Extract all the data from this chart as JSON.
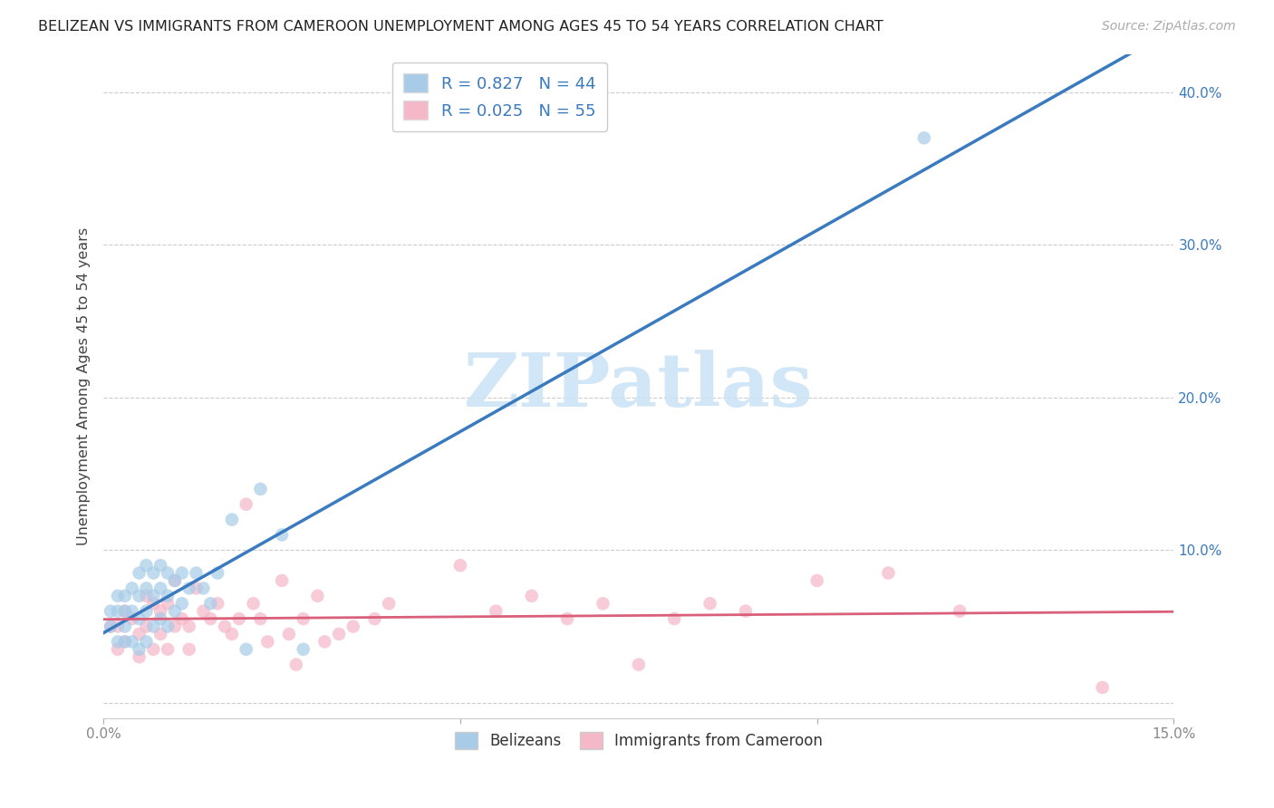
{
  "title": "BELIZEAN VS IMMIGRANTS FROM CAMEROON UNEMPLOYMENT AMONG AGES 45 TO 54 YEARS CORRELATION CHART",
  "source": "Source: ZipAtlas.com",
  "ylabel": "Unemployment Among Ages 45 to 54 years",
  "xlim": [
    0.0,
    0.15
  ],
  "ylim": [
    -0.01,
    0.425
  ],
  "xticks": [
    0.0,
    0.05,
    0.1,
    0.15
  ],
  "xticklabels": [
    "0.0%",
    "",
    "",
    "15.0%"
  ],
  "yticks": [
    0.0,
    0.1,
    0.2,
    0.3,
    0.4
  ],
  "yticklabels": [
    "",
    "10.0%",
    "20.0%",
    "30.0%",
    "40.0%"
  ],
  "belizean_color": "#a8cce8",
  "cameroon_color": "#f4b8c8",
  "belizean_line_color": "#3a7abf",
  "cameroon_line_color": "#d95f7a",
  "R_belizean": 0.827,
  "N_belizean": 44,
  "R_cameroon": 0.025,
  "N_cameroon": 55,
  "watermark_text": "ZIPatlas",
  "watermark_color": "#cce4f5",
  "legend_label_belizean": "Belizeans",
  "legend_label_cameroon": "Immigrants from Cameroon",
  "belizean_x": [
    0.001,
    0.001,
    0.002,
    0.002,
    0.002,
    0.003,
    0.003,
    0.003,
    0.003,
    0.004,
    0.004,
    0.004,
    0.005,
    0.005,
    0.005,
    0.005,
    0.006,
    0.006,
    0.006,
    0.006,
    0.007,
    0.007,
    0.007,
    0.008,
    0.008,
    0.008,
    0.009,
    0.009,
    0.009,
    0.01,
    0.01,
    0.011,
    0.011,
    0.012,
    0.013,
    0.014,
    0.015,
    0.016,
    0.018,
    0.02,
    0.022,
    0.025,
    0.028,
    0.115
  ],
  "belizean_y": [
    0.05,
    0.06,
    0.04,
    0.06,
    0.07,
    0.04,
    0.05,
    0.06,
    0.07,
    0.04,
    0.06,
    0.075,
    0.035,
    0.055,
    0.07,
    0.085,
    0.04,
    0.06,
    0.075,
    0.09,
    0.05,
    0.07,
    0.085,
    0.055,
    0.075,
    0.09,
    0.05,
    0.07,
    0.085,
    0.06,
    0.08,
    0.065,
    0.085,
    0.075,
    0.085,
    0.075,
    0.065,
    0.085,
    0.12,
    0.035,
    0.14,
    0.11,
    0.035,
    0.37
  ],
  "cameroon_x": [
    0.001,
    0.002,
    0.002,
    0.003,
    0.003,
    0.004,
    0.005,
    0.005,
    0.006,
    0.006,
    0.007,
    0.007,
    0.008,
    0.008,
    0.009,
    0.009,
    0.01,
    0.01,
    0.011,
    0.012,
    0.012,
    0.013,
    0.014,
    0.015,
    0.016,
    0.017,
    0.018,
    0.019,
    0.02,
    0.021,
    0.022,
    0.023,
    0.025,
    0.026,
    0.027,
    0.028,
    0.03,
    0.031,
    0.033,
    0.035,
    0.038,
    0.04,
    0.05,
    0.055,
    0.06,
    0.065,
    0.07,
    0.075,
    0.08,
    0.085,
    0.09,
    0.1,
    0.11,
    0.12,
    0.14
  ],
  "cameroon_y": [
    0.05,
    0.05,
    0.035,
    0.06,
    0.04,
    0.055,
    0.045,
    0.03,
    0.05,
    0.07,
    0.035,
    0.065,
    0.06,
    0.045,
    0.065,
    0.035,
    0.05,
    0.08,
    0.055,
    0.05,
    0.035,
    0.075,
    0.06,
    0.055,
    0.065,
    0.05,
    0.045,
    0.055,
    0.13,
    0.065,
    0.055,
    0.04,
    0.08,
    0.045,
    0.025,
    0.055,
    0.07,
    0.04,
    0.045,
    0.05,
    0.055,
    0.065,
    0.09,
    0.06,
    0.07,
    0.055,
    0.065,
    0.025,
    0.055,
    0.065,
    0.06,
    0.08,
    0.085,
    0.06,
    0.01
  ],
  "grid_color": "#cccccc",
  "tick_color": "#888888",
  "title_fontsize": 11.5,
  "source_fontsize": 10,
  "label_fontsize": 11,
  "scatter_size": 110,
  "scatter_alpha": 0.72
}
